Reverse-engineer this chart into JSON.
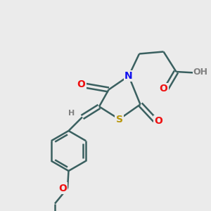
{
  "bg_color": "#ebebeb",
  "atom_colors": {
    "C": "#3a3a3a",
    "N": "#1010ee",
    "O": "#ee1010",
    "S": "#b8960a",
    "H": "#808080"
  },
  "bond_color": "#3a6060",
  "bond_width": 1.8,
  "dbo": 0.08
}
